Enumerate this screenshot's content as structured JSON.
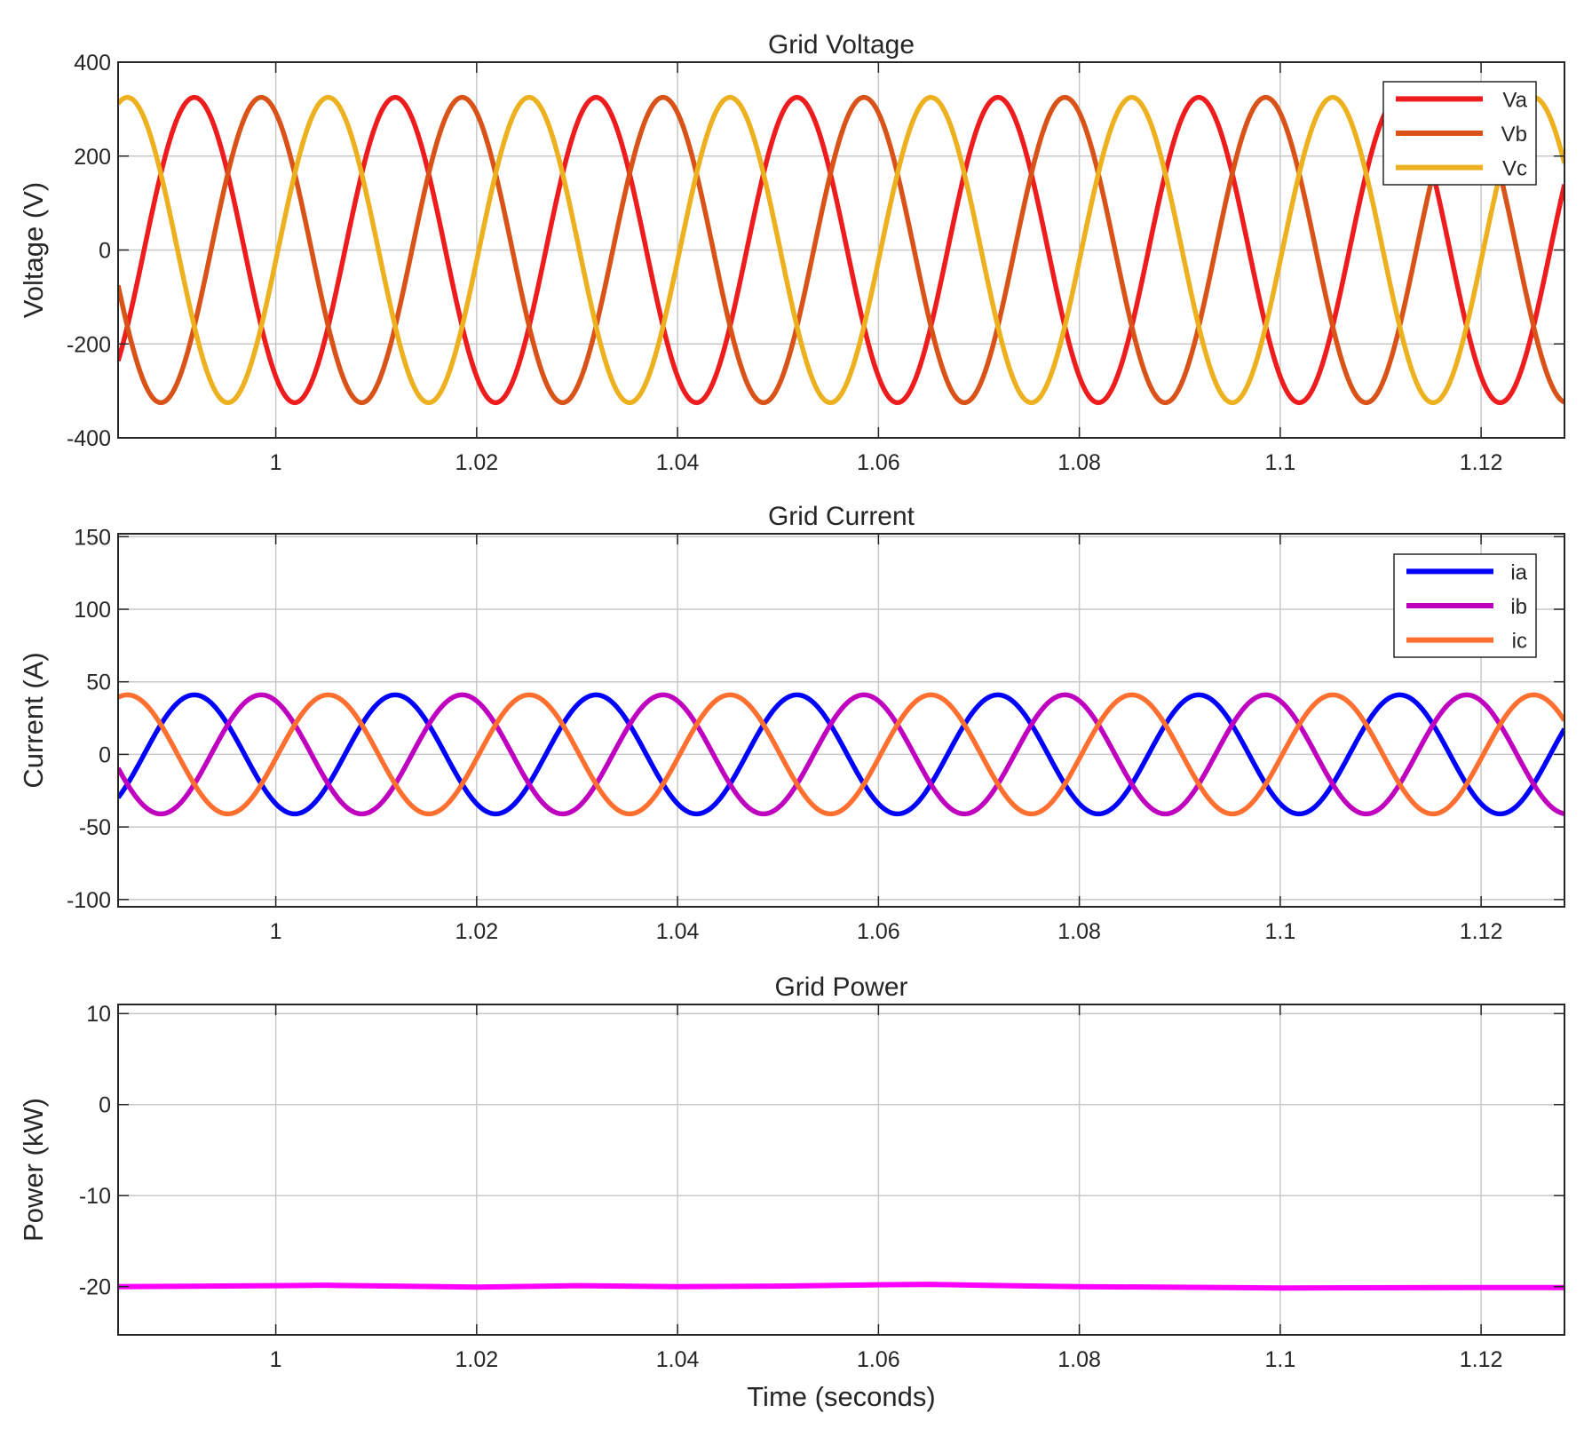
{
  "chart_data": [
    {
      "type": "line",
      "title": "Grid Voltage",
      "xlabel": "",
      "ylabel": "Voltage (V)",
      "xlim": [
        0.9843,
        1.1283
      ],
      "ylim": [
        -400,
        400
      ],
      "xticks": [
        1,
        1.02,
        1.04,
        1.06,
        1.08,
        1.1,
        1.12
      ],
      "xtick_labels": [
        "1",
        "1.02",
        "1.04",
        "1.06",
        "1.08",
        "1.1",
        "1.12"
      ],
      "yticks": [
        400,
        200,
        0,
        -200,
        -400
      ],
      "ytick_labels": [
        "400",
        "200",
        "0",
        "-200",
        "-400"
      ],
      "grid": true,
      "legend": "top-right",
      "series": [
        {
          "name": "Va",
          "color": "#ee1c1c",
          "amplitude": 325,
          "frequency_hz": 50,
          "phase_deg": -124,
          "offset": 0
        },
        {
          "name": "Vb",
          "color": "#d95319",
          "amplitude": 325,
          "frequency_hz": 50,
          "phase_deg": 116,
          "offset": 0
        },
        {
          "name": "Vc",
          "color": "#edb120",
          "amplitude": 325,
          "frequency_hz": 50,
          "phase_deg": -4,
          "offset": 0
        }
      ]
    },
    {
      "type": "line",
      "title": "Grid Current",
      "xlabel": "",
      "ylabel": "Current (A)",
      "xlim": [
        0.9843,
        1.1283
      ],
      "ylim": [
        -105,
        152
      ],
      "xticks": [
        1,
        1.02,
        1.04,
        1.06,
        1.08,
        1.1,
        1.12
      ],
      "xtick_labels": [
        "1",
        "1.02",
        "1.04",
        "1.06",
        "1.08",
        "1.1",
        "1.12"
      ],
      "yticks": [
        150,
        100,
        50,
        0,
        -50,
        -100
      ],
      "ytick_labels": [
        "150",
        "100",
        "50",
        "0",
        "-50",
        "-100"
      ],
      "grid": true,
      "legend": "top-right",
      "series": [
        {
          "name": "ia",
          "color": "#0000ff",
          "amplitude": 41,
          "frequency_hz": 50,
          "phase_deg": -124,
          "offset": 0
        },
        {
          "name": "ib",
          "color": "#bf00bf",
          "amplitude": 41,
          "frequency_hz": 50,
          "phase_deg": 116,
          "offset": 0
        },
        {
          "name": "ic",
          "color": "#ff7030",
          "amplitude": 41,
          "frequency_hz": 50,
          "phase_deg": -4,
          "offset": 0
        }
      ]
    },
    {
      "type": "line",
      "title": "Grid Power",
      "xlabel": "Time (seconds)",
      "ylabel": "Power (kW)",
      "xlim": [
        0.9843,
        1.1283
      ],
      "ylim": [
        -25.3,
        11
      ],
      "xticks": [
        1,
        1.02,
        1.04,
        1.06,
        1.08,
        1.1,
        1.12
      ],
      "xtick_labels": [
        "1",
        "1.02",
        "1.04",
        "1.06",
        "1.08",
        "1.1",
        "1.12"
      ],
      "yticks": [
        10,
        0,
        -10,
        -20
      ],
      "ytick_labels": [
        "10",
        "0",
        "-10",
        "-20"
      ],
      "grid": true,
      "legend": "none",
      "series": [
        {
          "name": "",
          "color": "#ff00ff",
          "x": [
            0.9843,
            1.0,
            1.005,
            1.02,
            1.03,
            1.04,
            1.05,
            1.06,
            1.065,
            1.07,
            1.08,
            1.1,
            1.12,
            1.1283
          ],
          "values": [
            -20.0,
            -19.9,
            -19.85,
            -20.05,
            -19.9,
            -20.0,
            -19.95,
            -19.8,
            -19.75,
            -19.85,
            -20.0,
            -20.15,
            -20.1,
            -20.1
          ]
        }
      ]
    }
  ]
}
